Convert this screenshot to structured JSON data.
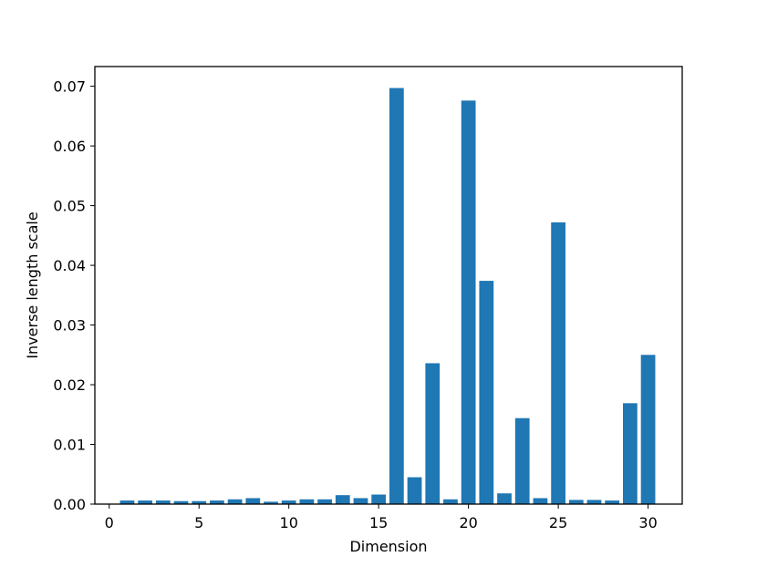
{
  "chart_data": {
    "type": "bar",
    "xlabel": "Dimension",
    "ylabel": "Inverse length scale",
    "xlim": [
      -0.8,
      31.9
    ],
    "ylim": [
      0,
      0.0733
    ],
    "x_ticks": [
      0,
      5,
      10,
      15,
      20,
      25,
      30
    ],
    "x_tick_labels": [
      "0",
      "5",
      "10",
      "15",
      "20",
      "25",
      "30"
    ],
    "y_ticks": [
      0,
      0.01,
      0.02,
      0.03,
      0.04,
      0.05,
      0.06,
      0.07
    ],
    "y_tick_labels": [
      "0.00",
      "0.01",
      "0.02",
      "0.03",
      "0.04",
      "0.05",
      "0.06",
      "0.07"
    ],
    "grid": false,
    "color": "#1f77b4",
    "categories": [
      1,
      2,
      3,
      4,
      5,
      6,
      7,
      8,
      9,
      10,
      11,
      12,
      13,
      14,
      15,
      16,
      17,
      18,
      19,
      20,
      21,
      22,
      23,
      24,
      25,
      26,
      27,
      28,
      29,
      30
    ],
    "values": [
      0.0006,
      0.0006,
      0.0006,
      0.0005,
      0.0005,
      0.0006,
      0.0008,
      0.001,
      0.0004,
      0.0006,
      0.0008,
      0.0008,
      0.0015,
      0.001,
      0.0016,
      0.0697,
      0.0045,
      0.0236,
      0.0008,
      0.0676,
      0.0374,
      0.0018,
      0.0144,
      0.001,
      0.0472,
      0.0007,
      0.0007,
      0.0006,
      0.0169,
      0.025
    ]
  }
}
